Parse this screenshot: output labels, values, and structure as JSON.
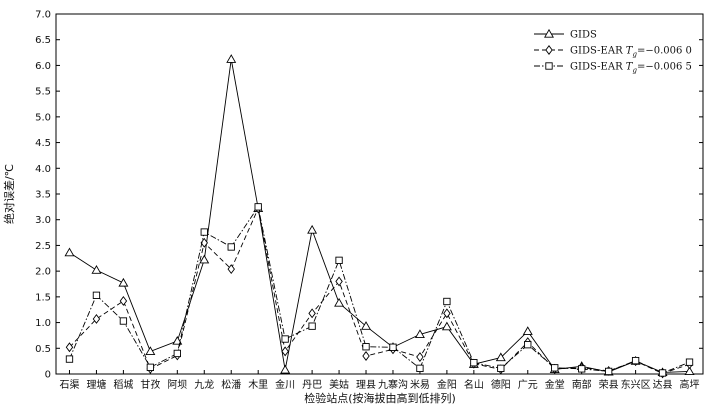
{
  "chart_data": {
    "type": "line",
    "xlabel": "检验站点(按海拔由高到低排列)",
    "ylabel": "绝对误差/℃",
    "ylim": [
      0,
      7.0
    ],
    "yticks": [
      "0",
      "0.5",
      "1.0",
      "1.5",
      "2.0",
      "2.5",
      "3.0",
      "3.5",
      "4.0",
      "4.5",
      "5.0",
      "5.5",
      "6.0",
      "6.5",
      "7.0"
    ],
    "categories": [
      "石渠",
      "理塘",
      "稻城",
      "甘孜",
      "阿坝",
      "九龙",
      "松潘",
      "木里",
      "金川",
      "丹巴",
      "美姑",
      "理县",
      "九寨沟",
      "米易",
      "金阳",
      "名山",
      "德阳",
      "广元",
      "金堂",
      "南部",
      "荣县",
      "东兴区",
      "达县",
      "高坪"
    ],
    "grid": false,
    "legend_position": "top-right",
    "series": [
      {
        "name": "GIDS",
        "marker": "triangle",
        "line_style": "solid",
        "color": "#000000",
        "values": [
          2.36,
          2.02,
          1.77,
          0.44,
          0.64,
          2.22,
          6.12,
          3.22,
          0.08,
          2.8,
          1.38,
          0.93,
          0.52,
          0.77,
          0.92,
          0.19,
          0.32,
          0.83,
          0.09,
          0.15,
          0.04,
          0.25,
          0.03,
          0.05
        ]
      },
      {
        "name": "GIDS-EAR",
        "legend_suffix": "=−0.006 0",
        "marker": "diamond",
        "line_style": "dashed",
        "color": "#000000",
        "values": [
          0.52,
          1.07,
          1.42,
          0.1,
          0.36,
          2.55,
          2.04,
          3.22,
          0.44,
          1.18,
          1.8,
          0.35,
          0.48,
          0.33,
          1.18,
          0.2,
          0.09,
          0.62,
          0.1,
          0.12,
          0.06,
          0.25,
          0.01,
          0.19
        ]
      },
      {
        "name": "GIDS-EAR",
        "legend_suffix": "=−0.006 5",
        "marker": "square",
        "line_style": "dashdot",
        "color": "#000000",
        "values": [
          0.29,
          1.53,
          1.03,
          0.13,
          0.4,
          2.76,
          2.47,
          3.25,
          0.68,
          0.93,
          2.21,
          0.53,
          0.52,
          0.11,
          1.41,
          0.22,
          0.11,
          0.57,
          0.12,
          0.1,
          0.05,
          0.26,
          0.02,
          0.23
        ]
      }
    ]
  }
}
